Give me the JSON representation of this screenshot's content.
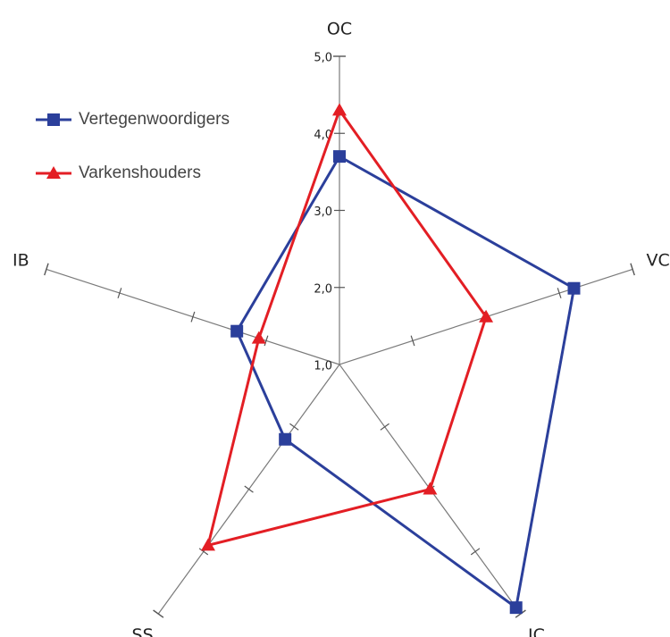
{
  "chart_data": {
    "type": "radar",
    "title": "",
    "axes": [
      "OC",
      "VC",
      "IC",
      "SS",
      "IB"
    ],
    "range": [
      1.0,
      5.0
    ],
    "tick_labels": [
      "1,0",
      "2,0",
      "3,0",
      "4,0",
      "5,0"
    ],
    "series": [
      {
        "name": "Vertegenwoordigers",
        "color": "#2b3f9b",
        "marker": "square",
        "values": [
          3.7,
          4.2,
          4.9,
          2.2,
          2.4
        ]
      },
      {
        "name": "Varkenshouders",
        "color": "#e31e24",
        "marker": "triangle",
        "values": [
          4.3,
          3.0,
          3.0,
          3.9,
          2.1
        ]
      }
    ],
    "legend_position": "top-left",
    "grid": false
  }
}
